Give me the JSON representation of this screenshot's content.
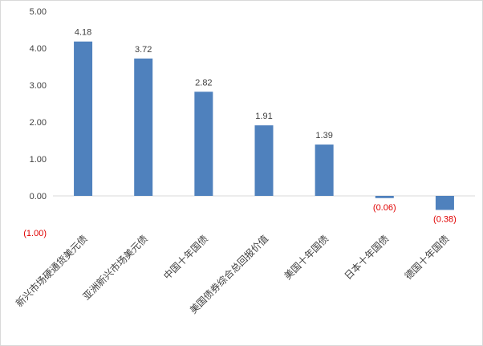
{
  "chart_data": {
    "type": "bar",
    "categories": [
      "新兴市场硬通货美元债",
      "亚洲新兴市场美元债",
      "中国十年国债",
      "美国债券综合总回报价值",
      "美国十年国债",
      "日本十年国债",
      "德国十年国债"
    ],
    "values": [
      4.18,
      3.72,
      2.82,
      1.91,
      1.39,
      -0.06,
      -0.38
    ],
    "data_labels": [
      "4.18",
      "3.72",
      "2.82",
      "1.91",
      "1.39",
      "(0.06)",
      "(0.38)"
    ],
    "y_ticks": [
      5,
      4,
      3,
      2,
      1,
      0,
      -1
    ],
    "y_tick_labels": [
      "5.00",
      "4.00",
      "3.00",
      "2.00",
      "1.00",
      "0.00",
      "(1.00)"
    ],
    "ylim": [
      -1,
      5
    ],
    "title": "",
    "xlabel": "",
    "ylabel": "",
    "grid": false,
    "bar_color": "#4f81bd",
    "negative_label_color": "#e00000"
  }
}
